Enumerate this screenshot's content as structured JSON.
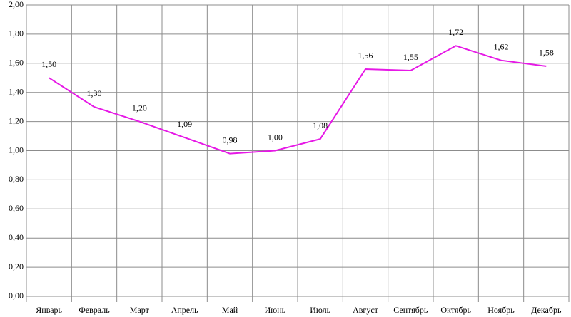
{
  "chart_data": {
    "type": "line",
    "categories": [
      "Январь",
      "Февраль",
      "Март",
      "Апрель",
      "Май",
      "Июнь",
      "Июль",
      "Август",
      "Сентябрь",
      "Октябрь",
      "Ноябрь",
      "Декабрь"
    ],
    "values": [
      1.5,
      1.3,
      1.2,
      1.09,
      0.98,
      1.0,
      1.08,
      1.56,
      1.55,
      1.72,
      1.62,
      1.58
    ],
    "value_labels": [
      "1,50",
      "1,30",
      "1,20",
      "1,09",
      "0,98",
      "1,00",
      "1,08",
      "1,56",
      "1,55",
      "1,72",
      "1,62",
      "1,58"
    ],
    "color": "#e619e6",
    "ylim": [
      0,
      2
    ],
    "yticks": [
      {
        "value": 0,
        "label": "0,00"
      },
      {
        "value": 0.2,
        "label": "0,20"
      },
      {
        "value": 0.4,
        "label": "0,40"
      },
      {
        "value": 0.6,
        "label": "0,60"
      },
      {
        "value": 0.8,
        "label": "0,80"
      },
      {
        "value": 1.0,
        "label": "1,00"
      },
      {
        "value": 1.2,
        "label": "1,20"
      },
      {
        "value": 1.4,
        "label": "1,40"
      },
      {
        "value": 1.6,
        "label": "1,60"
      },
      {
        "value": 1.8,
        "label": "1,80"
      },
      {
        "value": 2.0,
        "label": "2,00"
      }
    ],
    "grid": true
  }
}
